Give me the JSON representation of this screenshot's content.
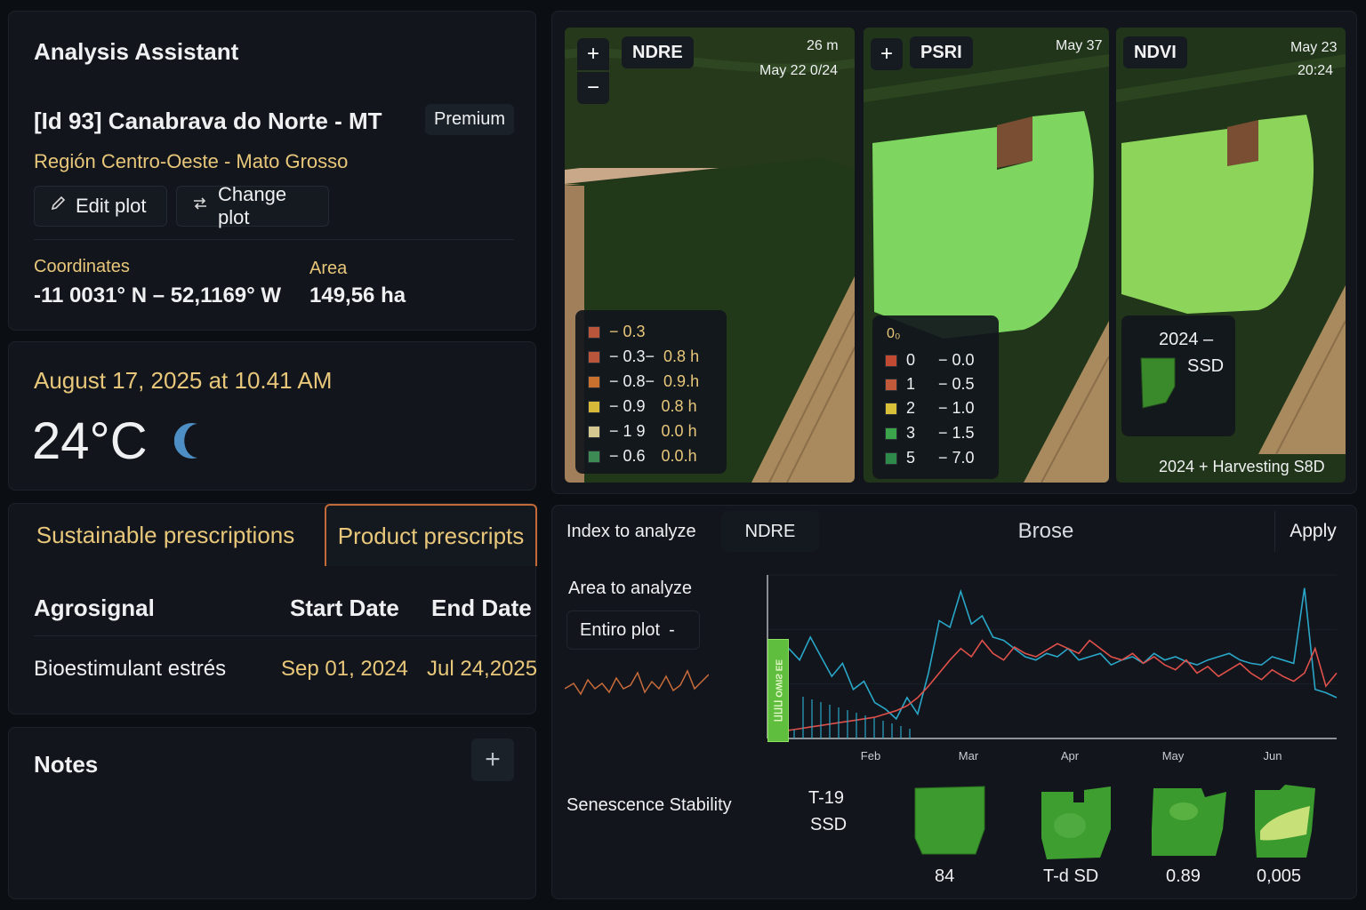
{
  "assistant": {
    "title": "Analysis Assistant",
    "plot_name": "[Id 93] Canabrava do Norte - MT",
    "badge": "Premium",
    "region": "Región Centro-Oeste - Mato Grosso",
    "edit_label": "Edit plot",
    "change_label": "Change plot",
    "coords_label": "Coordinates",
    "coords_value": "-11 0031° N – 52,1169° W",
    "area_label": "Area",
    "area_value": "149,56 ha"
  },
  "weather": {
    "datetime": "August 17, 2025 at 10.41 AM",
    "temperature": "24°C",
    "icon": "moon-icon"
  },
  "prescriptions": {
    "tab_sustainable": "Sustainable prescriptions",
    "tab_product": "Product prescripts",
    "columns": [
      "Agrosignal",
      "Start Date",
      "End Date"
    ],
    "rows": [
      {
        "agrosignal": "Bioestimulant estrés",
        "start": "Sep 01, 2024",
        "end": "Jul 24,2025"
      }
    ]
  },
  "notes": {
    "title": "Notes",
    "add_label": "+"
  },
  "maps": {
    "zoom_in": "+",
    "zoom_out": "−",
    "ndre": {
      "label": "NDRE",
      "time1": "26 m",
      "time2": "May 22 0/24",
      "legend": [
        {
          "a": "− 0.3",
          "b": "",
          "color": "#b8553a"
        },
        {
          "a": "− 0.3−",
          "b": "0.8 h",
          "color": "#b8553a"
        },
        {
          "a": "− 0.8−",
          "b": "0.9.h",
          "color": "#c8702e"
        },
        {
          "a": "− 0.9",
          "b": "0.8 h",
          "color": "#d8b838"
        },
        {
          "a": "− 1 9",
          "b": "0.0 h",
          "color": "#d4c890"
        },
        {
          "a": "− 0.6",
          "b": "0.0.h",
          "color": "#3e8a54"
        }
      ]
    },
    "psri": {
      "label": "PSRI",
      "time1": "May 37",
      "legend_header": "0₀",
      "legend": [
        {
          "a": "0",
          "b": "− 0.0",
          "color": "#c04a32"
        },
        {
          "a": "1",
          "b": "− 0.5",
          "color": "#c05a3a"
        },
        {
          "a": "2",
          "b": "− 1.0",
          "color": "#d8c038"
        },
        {
          "a": "3",
          "b": "− 1.5",
          "color": "#3aa54a"
        },
        {
          "a": "5",
          "b": "− 7.0",
          "color": "#2e8a4a"
        }
      ]
    },
    "ndvi": {
      "label": "NDVI",
      "time1": "May 23",
      "time2": "20:24",
      "inset_year": "2024 –",
      "inset_label": "SSD",
      "caption": "2024 + Harvesting S8D"
    }
  },
  "analysis": {
    "index_label": "Index to analyze",
    "index_value": "NDRE",
    "browse_label": "Brose",
    "apply_label": "Apply",
    "area_label": "Area to analyze",
    "area_value": "Entiro plot",
    "area_caret": "-",
    "chart_marker": "ƎƎ ƧIWO ∏∏∏",
    "senescence_label": "Senescence Stability",
    "senescence_t": "T-19",
    "senescence_ssd": "SSD",
    "thumbs": [
      {
        "value": "84"
      },
      {
        "value": "T-d SD"
      },
      {
        "value": "0.89"
      },
      {
        "value": "0,005"
      }
    ]
  },
  "chart_data": {
    "type": "line",
    "x_ticks": [
      "Feb",
      "Mar",
      "Apr",
      "May",
      "Jun"
    ],
    "series": [
      {
        "color": "#2aa6c8",
        "values": [
          0.55,
          0.48,
          0.62,
          0.5,
          0.38,
          0.46,
          0.3,
          0.35,
          0.22,
          0.18,
          0.12,
          0.25,
          0.15,
          0.4,
          0.72,
          0.68,
          0.9,
          0.7,
          0.75,
          0.62,
          0.6,
          0.55,
          0.5,
          0.48,
          0.52,
          0.5,
          0.55,
          0.48,
          0.5,
          0.52,
          0.45,
          0.48,
          0.5,
          0.46,
          0.52,
          0.48,
          0.5,
          0.47,
          0.45,
          0.48,
          0.5,
          0.52,
          0.48,
          0.46,
          0.45,
          0.5,
          0.48,
          0.46,
          0.92,
          0.3,
          0.28,
          0.25
        ]
      },
      {
        "color": "#e0504a",
        "values": [
          0.05,
          0.06,
          0.07,
          0.08,
          0.09,
          0.1,
          0.11,
          0.12,
          0.13,
          0.15,
          0.17,
          0.2,
          0.25,
          0.32,
          0.4,
          0.48,
          0.55,
          0.5,
          0.6,
          0.52,
          0.48,
          0.56,
          0.52,
          0.5,
          0.54,
          0.58,
          0.55,
          0.52,
          0.6,
          0.55,
          0.5,
          0.48,
          0.52,
          0.46,
          0.5,
          0.45,
          0.42,
          0.48,
          0.4,
          0.44,
          0.38,
          0.42,
          0.46,
          0.4,
          0.36,
          0.42,
          0.38,
          0.35,
          0.4,
          0.55,
          0.32,
          0.4
        ]
      }
    ],
    "ylim": [
      0,
      1
    ]
  }
}
